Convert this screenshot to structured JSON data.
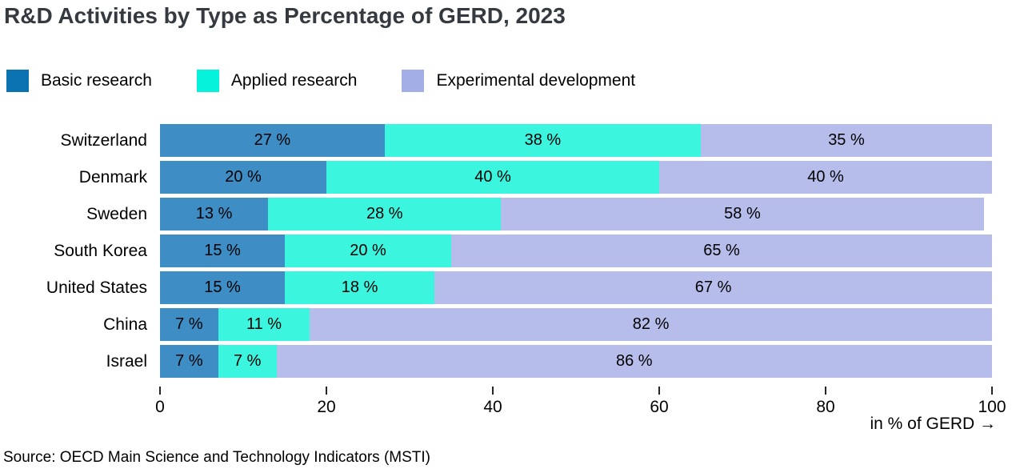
{
  "title": "R&D Activities by Type as Percentage of GERD, 2023",
  "source": "Source: OECD Main Science and Technology Indicators (MSTI)",
  "chart_data": {
    "type": "bar",
    "subtype": "horizontal-stacked",
    "categories": [
      "Switzerland",
      "Denmark",
      "Sweden",
      "South Korea",
      "United States",
      "China",
      "Israel"
    ],
    "series": [
      {
        "name": "Basic research",
        "legend_color": "#0b72b1",
        "bar_color": "#3e8dc5",
        "values": [
          27,
          20,
          13,
          15,
          15,
          7,
          7
        ]
      },
      {
        "name": "Applied research",
        "legend_color": "#06f2da",
        "bar_color": "#3cf5de",
        "values": [
          38,
          40,
          28,
          20,
          18,
          11,
          7
        ]
      },
      {
        "name": "Experimental development",
        "legend_color": "#a4aee6",
        "bar_color": "#b6bdeb",
        "values": [
          35,
          40,
          58,
          65,
          67,
          82,
          86
        ]
      }
    ],
    "value_suffix": " %",
    "xlim": [
      0,
      100
    ],
    "x_ticks": [
      0,
      20,
      40,
      60,
      80,
      100
    ],
    "x_axis_label": "in % of GERD →",
    "legend_position": "top-left",
    "grid": false,
    "title_color": "#343a40"
  }
}
